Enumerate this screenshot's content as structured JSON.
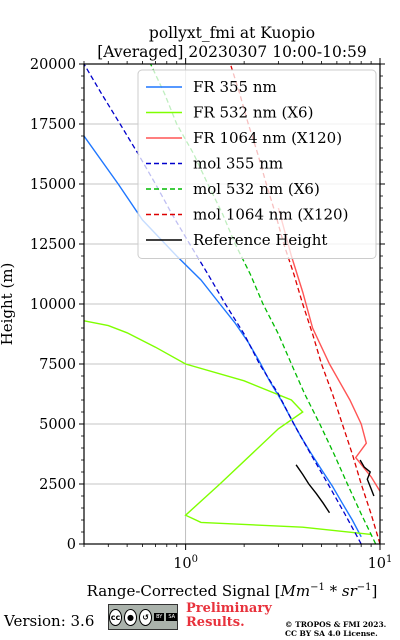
{
  "chart_data": {
    "type": "line",
    "title": "pollyxt_fmi at Kuopio",
    "subtitle": "[Averaged] 20230307 10:00-10:59",
    "xlabel": "Range-Corrected Signal [Mm^-1 * sr^-1]",
    "ylabel": "Height (m)",
    "xscale": "log",
    "xlim": [
      0.3,
      10
    ],
    "ylim": [
      0,
      20000
    ],
    "yticks": [
      "0",
      "2500",
      "5000",
      "7500",
      "10000",
      "12500",
      "15000",
      "17500",
      "20000"
    ],
    "xticks": [
      "10^0",
      "10^1"
    ],
    "grid": true,
    "legend_position": "top-right",
    "series": [
      {
        "name": "FR 355 nm",
        "color": "#1f77ff",
        "style": "solid",
        "x": [
          8.0,
          7.2,
          6.4,
          5.7,
          5.0,
          4.4,
          3.9,
          3.5,
          3.1,
          2.7,
          2.4,
          2.1,
          1.8,
          1.5,
          1.2,
          0.9,
          0.6,
          0.45,
          0.3
        ],
        "y": [
          300,
          1000,
          1700,
          2400,
          3100,
          3800,
          4500,
          5200,
          6000,
          6800,
          7600,
          8400,
          9200,
          10000,
          11000,
          12000,
          13500,
          15000,
          17000
        ]
      },
      {
        "name": "FR 532 nm (X6)",
        "color": "#7fff00",
        "style": "solid",
        "x": [
          9.0,
          4.0,
          1.2,
          1.0,
          1.5,
          3.0,
          4.0,
          3.5,
          2.0,
          1.0,
          0.7,
          0.5,
          0.4,
          0.3
        ],
        "y": [
          400,
          700,
          900,
          1200,
          2500,
          4800,
          5500,
          6000,
          6800,
          7500,
          8200,
          8800,
          9100,
          9300
        ]
      },
      {
        "name": "FR 1064 nm (X120)",
        "color": "#ff5555",
        "style": "solid",
        "x": [
          10.0,
          9.0,
          7.5,
          8.5,
          8.0,
          7.0,
          5.5,
          4.5,
          4.0,
          3.5,
          3.0
        ],
        "y": [
          2200,
          2800,
          3600,
          4200,
          5000,
          6000,
          7500,
          9000,
          10500,
          12000,
          14000
        ]
      },
      {
        "name": "mol 355 nm",
        "color": "#0000cc",
        "style": "dashed",
        "x": [
          8.0,
          6.6,
          5.4,
          4.4,
          3.6,
          3.0,
          2.4,
          2.0,
          1.6,
          1.3,
          1.05,
          0.85,
          0.7,
          0.57,
          0.46,
          0.37,
          0.3
        ],
        "y": [
          0,
          1250,
          2500,
          3750,
          5000,
          6250,
          7500,
          8750,
          10000,
          11250,
          12500,
          13750,
          15000,
          16250,
          17500,
          18750,
          20000
        ]
      },
      {
        "name": "mol 532 nm (X6)",
        "color": "#00bb00",
        "style": "dashed",
        "x": [
          9.5,
          8.0,
          6.8,
          5.8,
          4.9,
          4.1,
          3.5,
          3.0,
          2.5,
          2.15,
          1.8,
          1.55,
          1.3,
          1.1,
          0.9,
          0.78,
          0.66
        ],
        "y": [
          0,
          1250,
          2500,
          3750,
          5000,
          6250,
          7500,
          8750,
          10000,
          11250,
          12500,
          13750,
          15000,
          16250,
          17500,
          18750,
          20000
        ]
      },
      {
        "name": "mol 1064 nm (X120)",
        "color": "#dd0000",
        "style": "dashed",
        "x": [
          10.0,
          9.0,
          8.0,
          7.2,
          6.4,
          5.7,
          5.0,
          4.5,
          4.0,
          3.6,
          3.2,
          2.9,
          2.6,
          2.35,
          2.1,
          1.9,
          1.7
        ],
        "y": [
          0,
          1250,
          2500,
          3750,
          5000,
          6250,
          7500,
          8750,
          10000,
          11250,
          12500,
          13750,
          15000,
          16250,
          17500,
          18750,
          20000
        ]
      },
      {
        "name": "Reference Height",
        "color": "#000000",
        "style": "solid",
        "x": [
          3.7,
          4.0,
          4.3,
          4.7,
          5.1,
          5.5
        ],
        "y": [
          3300,
          2900,
          2500,
          2100,
          1700,
          1300
        ]
      },
      {
        "name": "",
        "color": "#000000",
        "style": "solid",
        "x": [
          7.9,
          8.3,
          8.9,
          8.6,
          9.0,
          9.3
        ],
        "y": [
          3500,
          3200,
          3000,
          2700,
          2300,
          2000
        ]
      }
    ]
  },
  "footer": {
    "version": "Version: 3.6",
    "cc_mark": "cc",
    "cc_by": "BY",
    "cc_sa": "SA",
    "preliminary_line1": "Preliminary",
    "preliminary_line2": "Results.",
    "copyright_line1": "© TROPOS & FMI 2023.",
    "copyright_line2": "CC BY SA 4.0 License."
  }
}
